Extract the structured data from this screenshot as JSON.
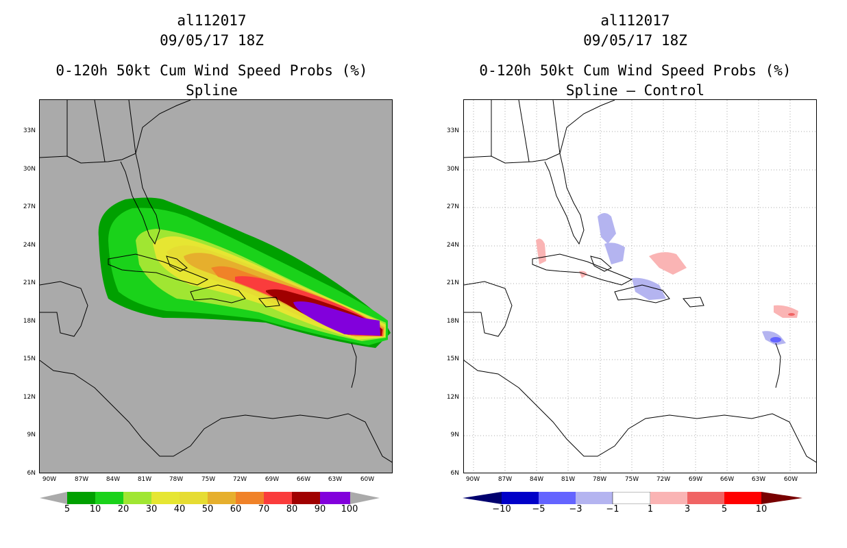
{
  "panels": [
    {
      "storm_id": "al112017",
      "datetime": "09/05/17 18Z",
      "product": "0-120h 50kt Cum Wind Speed Probs (%)",
      "subtitle": "Spline",
      "colorbar": {
        "colors": [
          "#00a000",
          "#1ad21a",
          "#a0e632",
          "#e6e632",
          "#e6dc32",
          "#e6af2d",
          "#f08228",
          "#fa3c3c",
          "#a00000",
          "#8200dc"
        ],
        "labels": [
          "5",
          "10",
          "20",
          "30",
          "40",
          "50",
          "60",
          "70",
          "80",
          "90",
          "100"
        ]
      }
    },
    {
      "storm_id": "al112017",
      "datetime": "09/05/17 18Z",
      "product": "0-120h 50kt Cum Wind Speed Probs (%)",
      "subtitle": "Spline – Control",
      "colorbar": {
        "colors": [
          "#0000c8",
          "#6464ff",
          "#b4b4f0",
          "#ffffff",
          "#fab4b4",
          "#f06464",
          "#ff0000"
        ],
        "labels": [
          "−10",
          "−5",
          "−3",
          "−1",
          "1",
          "3",
          "5",
          "10"
        ]
      }
    }
  ],
  "axes": {
    "lat_labels": [
      "33N",
      "30N",
      "27N",
      "24N",
      "21N",
      "18N",
      "15N",
      "12N",
      "9N",
      "6N"
    ],
    "lon_labels": [
      "90W",
      "87W",
      "84W",
      "81W",
      "78W",
      "75W",
      "72W",
      "69W",
      "66W",
      "63W",
      "60W"
    ],
    "lat_values": [
      33,
      30,
      27,
      24,
      21,
      18,
      15,
      12,
      9,
      6
    ],
    "lon_values": [
      -90,
      -87,
      -84,
      -81,
      -78,
      -75,
      -72,
      -69,
      -66,
      -63,
      -60
    ]
  },
  "colors": {
    "land_left_bg": "#aaaaaa",
    "coastline": "#000000",
    "grid": "#aaaaaa",
    "left_end_triangle": "#aaaaaa",
    "right_left_triangle": "#00006e",
    "right_right_triangle": "#780000"
  }
}
